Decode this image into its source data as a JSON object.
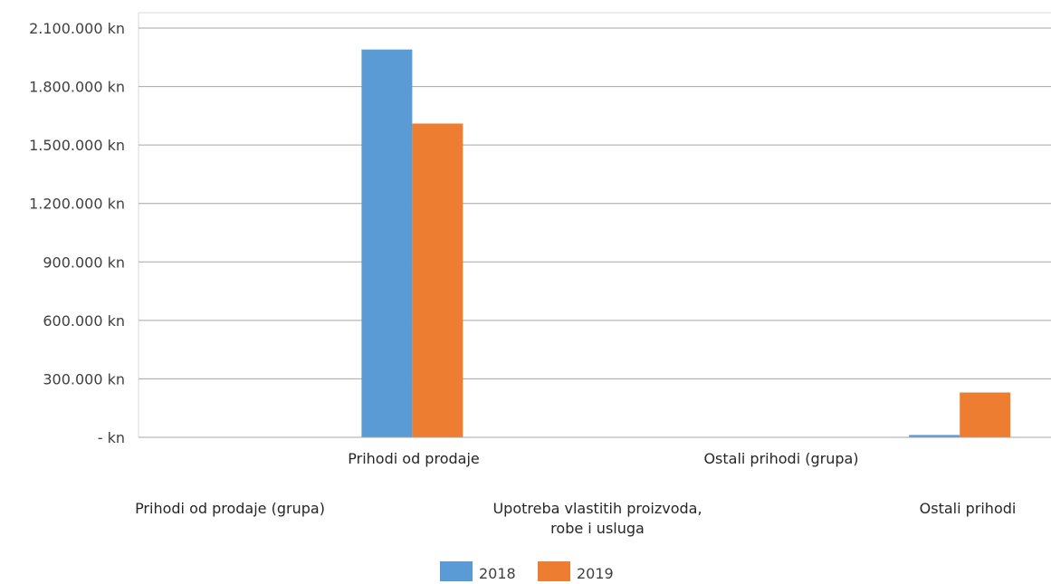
{
  "chart_data": {
    "type": "bar",
    "y_tick_labels": [
      "- kn",
      "300.000 kn",
      "600.000 kn",
      "900.000 kn",
      "1.200.000 kn",
      "1.500.000 kn",
      "1.800.000 kn",
      "2.100.000 kn"
    ],
    "ylim": [
      0,
      2100000
    ],
    "grid": true,
    "categories": [
      "Prihodi od prodaje (grupa)",
      "Prihodi od prodaje",
      "Upotreba vlastitih proizvoda, robe i usluga",
      "Ostali prihodi (grupa)",
      "Ostali prihodi"
    ],
    "series": [
      {
        "name": "2018",
        "color": "#5b9bd5",
        "values": [
          0,
          1990000,
          0,
          0,
          12000
        ]
      },
      {
        "name": "2019",
        "color": "#ed7d31",
        "values": [
          0,
          1610000,
          0,
          0,
          230000
        ]
      }
    ],
    "legend_position": "bottom"
  }
}
